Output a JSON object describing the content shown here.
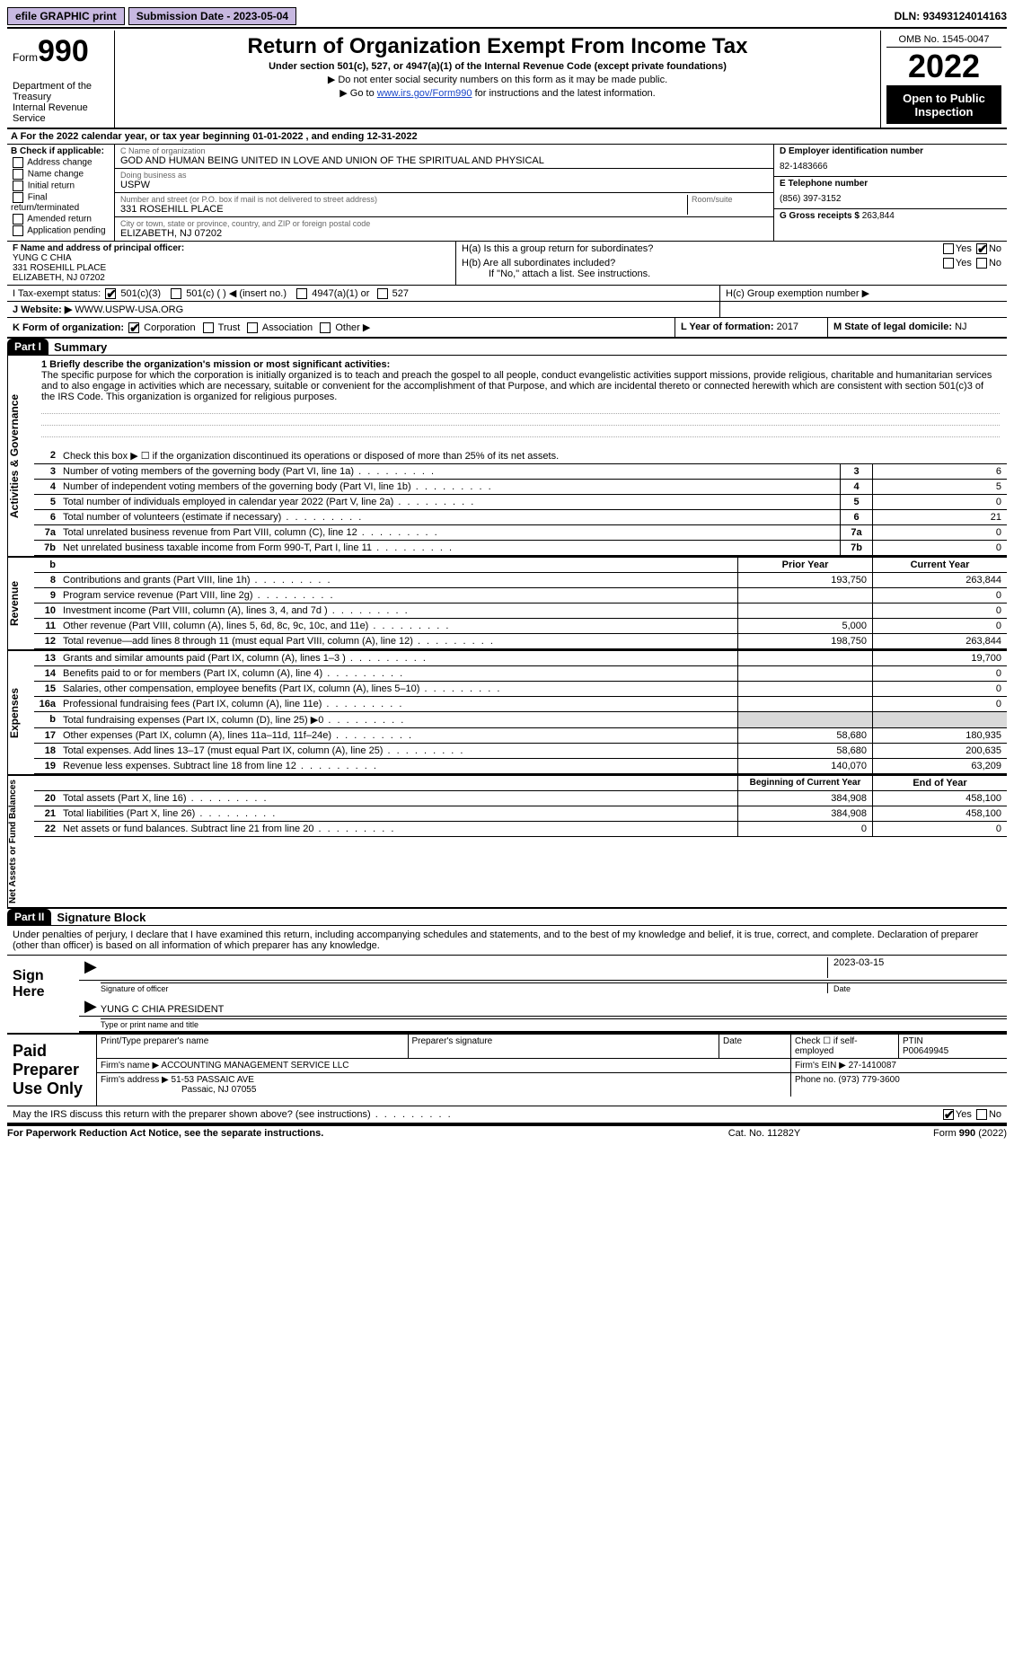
{
  "topbar": {
    "efile": "efile GRAPHIC print",
    "sub_label": "Submission Date - 2023-05-04",
    "dln": "DLN: 93493124014163"
  },
  "header": {
    "form_word": "Form",
    "form_num": "990",
    "dept": "Department of the Treasury\nInternal Revenue Service",
    "title": "Return of Organization Exempt From Income Tax",
    "sub": "Under section 501(c), 527, or 4947(a)(1) of the Internal Revenue Code (except private foundations)",
    "note1": "▶ Do not enter social security numbers on this form as it may be made public.",
    "note2_pre": "▶ Go to ",
    "note2_link": "www.irs.gov/Form990",
    "note2_post": " for instructions and the latest information.",
    "omb": "OMB No. 1545-0047",
    "year": "2022",
    "openpub": "Open to Public Inspection"
  },
  "lineA": "A For the 2022 calendar year, or tax year beginning 01-01-2022     , and ending 12-31-2022",
  "colB": {
    "hdr": "B Check if applicable:",
    "items": [
      "Address change",
      "Name change",
      "Initial return",
      "Final return/terminated",
      "Amended return",
      "Application pending"
    ]
  },
  "colC": {
    "name_lbl": "C Name of organization",
    "name": "GOD AND HUMAN BEING UNITED IN LOVE AND UNION OF THE SPIRITUAL AND PHYSICAL",
    "dba_lbl": "Doing business as",
    "dba": "USPW",
    "street_lbl": "Number and street (or P.O. box if mail is not delivered to street address)",
    "street": "331 ROSEHILL PLACE",
    "room_lbl": "Room/suite",
    "city_lbl": "City or town, state or province, country, and ZIP or foreign postal code",
    "city": "ELIZABETH, NJ  07202"
  },
  "colD": {
    "ein_lbl": "D Employer identification number",
    "ein": "82-1483666",
    "phone_lbl": "E Telephone number",
    "phone": "(856) 397-3152",
    "gross_lbl": "G Gross receipts $",
    "gross": "263,844"
  },
  "colF": {
    "lbl": "F Name and address of principal officer:",
    "name": "YUNG C CHIA",
    "street": "331 ROSEHILL PLACE",
    "city": "ELIZABETH, NJ  07202"
  },
  "colH": {
    "ha": "H(a)  Is this a group return for subordinates?",
    "hb": "H(b)  Are all subordinates included?",
    "hb2": "If \"No,\" attach a list. See instructions.",
    "hc": "H(c)  Group exemption number ▶"
  },
  "rowI": {
    "lbl": "I   Tax-exempt status:",
    "o1": "501(c)(3)",
    "o2": "501(c) (   ) ◀ (insert no.)",
    "o3": "4947(a)(1) or",
    "o4": "527"
  },
  "rowJ": {
    "lbl": "J   Website: ▶",
    "val": "WWW.USPW-USA.ORG"
  },
  "rowK": {
    "lbl": "K Form of organization:",
    "o1": "Corporation",
    "o2": "Trust",
    "o3": "Association",
    "o4": "Other ▶"
  },
  "rowL": {
    "lbl": "L Year of formation:",
    "val": "2017"
  },
  "rowM": {
    "lbl": "M State of legal domicile:",
    "val": "NJ"
  },
  "part1": {
    "bar": "Part I",
    "title": "Summary"
  },
  "mission": {
    "lbl": "1  Briefly describe the organization's mission or most significant activities:",
    "text": "The specific purpose for which the corporation is initially organized is to teach and preach the gospel to all people, conduct evangelistic activities support missions, provide religious, charitable and humanitarian services and to also engage in activities which are necessary, suitable or convenient for the accomplishment of that Purpose, and which are incidental thereto or connected herewith which are consistent with section 501(c)3 of the IRS Code. This organization is organized for religious purposes."
  },
  "gov": {
    "l2": "Check this box ▶ ☐  if the organization discontinued its operations or disposed of more than 25% of its net assets.",
    "rows": [
      {
        "n": "3",
        "d": "Number of voting members of the governing body (Part VI, line 1a)",
        "b": "3",
        "v": "6"
      },
      {
        "n": "4",
        "d": "Number of independent voting members of the governing body (Part VI, line 1b)",
        "b": "4",
        "v": "5"
      },
      {
        "n": "5",
        "d": "Total number of individuals employed in calendar year 2022 (Part V, line 2a)",
        "b": "5",
        "v": "0"
      },
      {
        "n": "6",
        "d": "Total number of volunteers (estimate if necessary)",
        "b": "6",
        "v": "21"
      },
      {
        "n": "7a",
        "d": "Total unrelated business revenue from Part VIII, column (C), line 12",
        "b": "7a",
        "v": "0"
      },
      {
        "n": "7b",
        "d": "Net unrelated business taxable income from Form 990-T, Part I, line 11",
        "b": "7b",
        "v": "0"
      }
    ]
  },
  "twoColHdr": {
    "b": "b",
    "c1": "Prior Year",
    "c2": "Current Year"
  },
  "rev": [
    {
      "n": "8",
      "d": "Contributions and grants (Part VIII, line 1h)",
      "c1": "193,750",
      "c2": "263,844"
    },
    {
      "n": "9",
      "d": "Program service revenue (Part VIII, line 2g)",
      "c1": "",
      "c2": "0"
    },
    {
      "n": "10",
      "d": "Investment income (Part VIII, column (A), lines 3, 4, and 7d )",
      "c1": "",
      "c2": "0"
    },
    {
      "n": "11",
      "d": "Other revenue (Part VIII, column (A), lines 5, 6d, 8c, 9c, 10c, and 11e)",
      "c1": "5,000",
      "c2": "0"
    },
    {
      "n": "12",
      "d": "Total revenue—add lines 8 through 11 (must equal Part VIII, column (A), line 12)",
      "c1": "198,750",
      "c2": "263,844"
    }
  ],
  "exp": [
    {
      "n": "13",
      "d": "Grants and similar amounts paid (Part IX, column (A), lines 1–3 )",
      "c1": "",
      "c2": "19,700"
    },
    {
      "n": "14",
      "d": "Benefits paid to or for members (Part IX, column (A), line 4)",
      "c1": "",
      "c2": "0"
    },
    {
      "n": "15",
      "d": "Salaries, other compensation, employee benefits (Part IX, column (A), lines 5–10)",
      "c1": "",
      "c2": "0"
    },
    {
      "n": "16a",
      "d": "Professional fundraising fees (Part IX, column (A), line 11e)",
      "c1": "",
      "c2": "0"
    },
    {
      "n": "b",
      "d": "Total fundraising expenses (Part IX, column (D), line 25) ▶0",
      "c1": "shade",
      "c2": "shade"
    },
    {
      "n": "17",
      "d": "Other expenses (Part IX, column (A), lines 11a–11d, 11f–24e)",
      "c1": "58,680",
      "c2": "180,935"
    },
    {
      "n": "18",
      "d": "Total expenses. Add lines 13–17 (must equal Part IX, column (A), line 25)",
      "c1": "58,680",
      "c2": "200,635"
    },
    {
      "n": "19",
      "d": "Revenue less expenses. Subtract line 18 from line 12",
      "c1": "140,070",
      "c2": "63,209"
    }
  ],
  "netHdr": {
    "c1": "Beginning of Current Year",
    "c2": "End of Year"
  },
  "net": [
    {
      "n": "20",
      "d": "Total assets (Part X, line 16)",
      "c1": "384,908",
      "c2": "458,100"
    },
    {
      "n": "21",
      "d": "Total liabilities (Part X, line 26)",
      "c1": "384,908",
      "c2": "458,100"
    },
    {
      "n": "22",
      "d": "Net assets or fund balances. Subtract line 21 from line 20",
      "c1": "0",
      "c2": "0"
    }
  ],
  "vtabs": {
    "gov": "Activities & Governance",
    "rev": "Revenue",
    "exp": "Expenses",
    "net": "Net Assets or Fund Balances"
  },
  "part2": {
    "bar": "Part II",
    "title": "Signature Block"
  },
  "declare": "Under penalties of perjury, I declare that I have examined this return, including accompanying schedules and statements, and to the best of my knowledge and belief, it is true, correct, and complete. Declaration of preparer (other than officer) is based on all information of which preparer has any knowledge.",
  "sign": {
    "lbl": "Sign Here",
    "sig_under": "Signature of officer",
    "date": "2023-03-15",
    "date_under": "Date",
    "name": "YUNG C CHIA PRESIDENT",
    "name_under": "Type or print name and title"
  },
  "paid": {
    "lbl": "Paid Preparer Use Only",
    "h1": "Print/Type preparer's name",
    "h2": "Preparer's signature",
    "h3": "Date",
    "h4": "Check ☐ if self-employed",
    "h5": "PTIN",
    "ptin": "P00649945",
    "firm_lbl": "Firm's name    ▶",
    "firm": "ACCOUNTING MANAGEMENT SERVICE LLC",
    "ein_lbl": "Firm's EIN ▶",
    "ein": "27-1410087",
    "addr_lbl": "Firm's address ▶",
    "addr1": "51-53 PASSAIC AVE",
    "addr2": "Passaic, NJ  07055",
    "phone_lbl": "Phone no.",
    "phone": "(973) 779-3600"
  },
  "discuss": "May the IRS discuss this return with the preparer shown above? (see instructions)",
  "footer": {
    "l": "For Paperwork Reduction Act Notice, see the separate instructions.",
    "c": "Cat. No. 11282Y",
    "r": "Form 990 (2022)"
  }
}
